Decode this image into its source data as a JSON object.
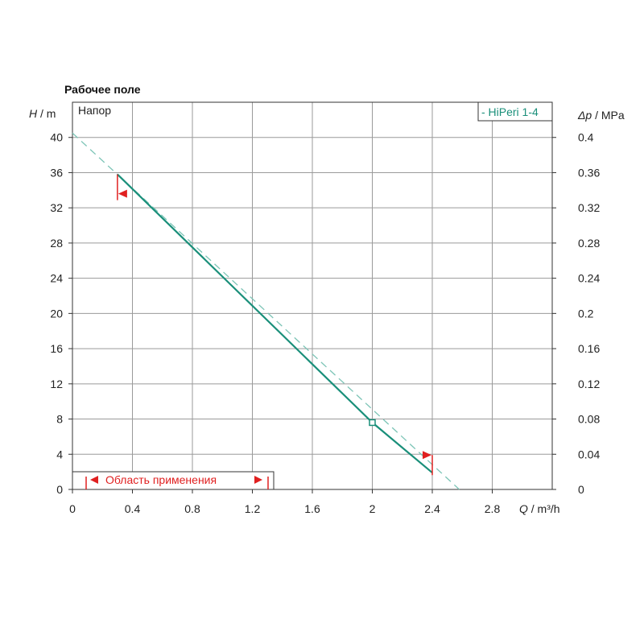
{
  "chart_data": {
    "type": "line",
    "title": "Рабочее поле",
    "inner_label": "Напор",
    "y_unit_symbol": "H",
    "y_unit": " / m",
    "y2_unit_symbol": "Δp",
    "y2_unit": " / MPa",
    "x_unit_symbol": "Q",
    "x_unit": " / m³/h",
    "xlim": [
      0,
      3.2
    ],
    "ylim": [
      0,
      44
    ],
    "y2lim": [
      0,
      0.44
    ],
    "x_ticks": [
      "0",
      "0.4",
      "0.8",
      "1.2",
      "1.6",
      "2",
      "2.4",
      "2.8"
    ],
    "y_ticks": [
      "0",
      "4",
      "8",
      "12",
      "16",
      "20",
      "24",
      "28",
      "32",
      "36",
      "40"
    ],
    "y2_ticks": [
      "0",
      "0.04",
      "0.08",
      "0.12",
      "0.16",
      "0.2",
      "0.24",
      "0.28",
      "0.32",
      "0.36",
      "0.4"
    ],
    "grid": true,
    "series": [
      {
        "name": "- HiPeri 1-4",
        "color": "#1a8f7a",
        "x": [
          0.3,
          2.0,
          2.4
        ],
        "y": [
          35.8,
          7.6,
          1.9
        ]
      }
    ],
    "extrapolation": {
      "color": "#7cc4b6",
      "x": [
        0,
        2.58
      ],
      "y": [
        40.5,
        0
      ]
    },
    "duty_point": {
      "x": 2.0,
      "y": 7.6
    },
    "range_markers": {
      "min_x": 0.3,
      "max_x": 2.4,
      "color": "#e02020"
    },
    "application_area_label": "Область применения",
    "legend_position": "top-right"
  }
}
